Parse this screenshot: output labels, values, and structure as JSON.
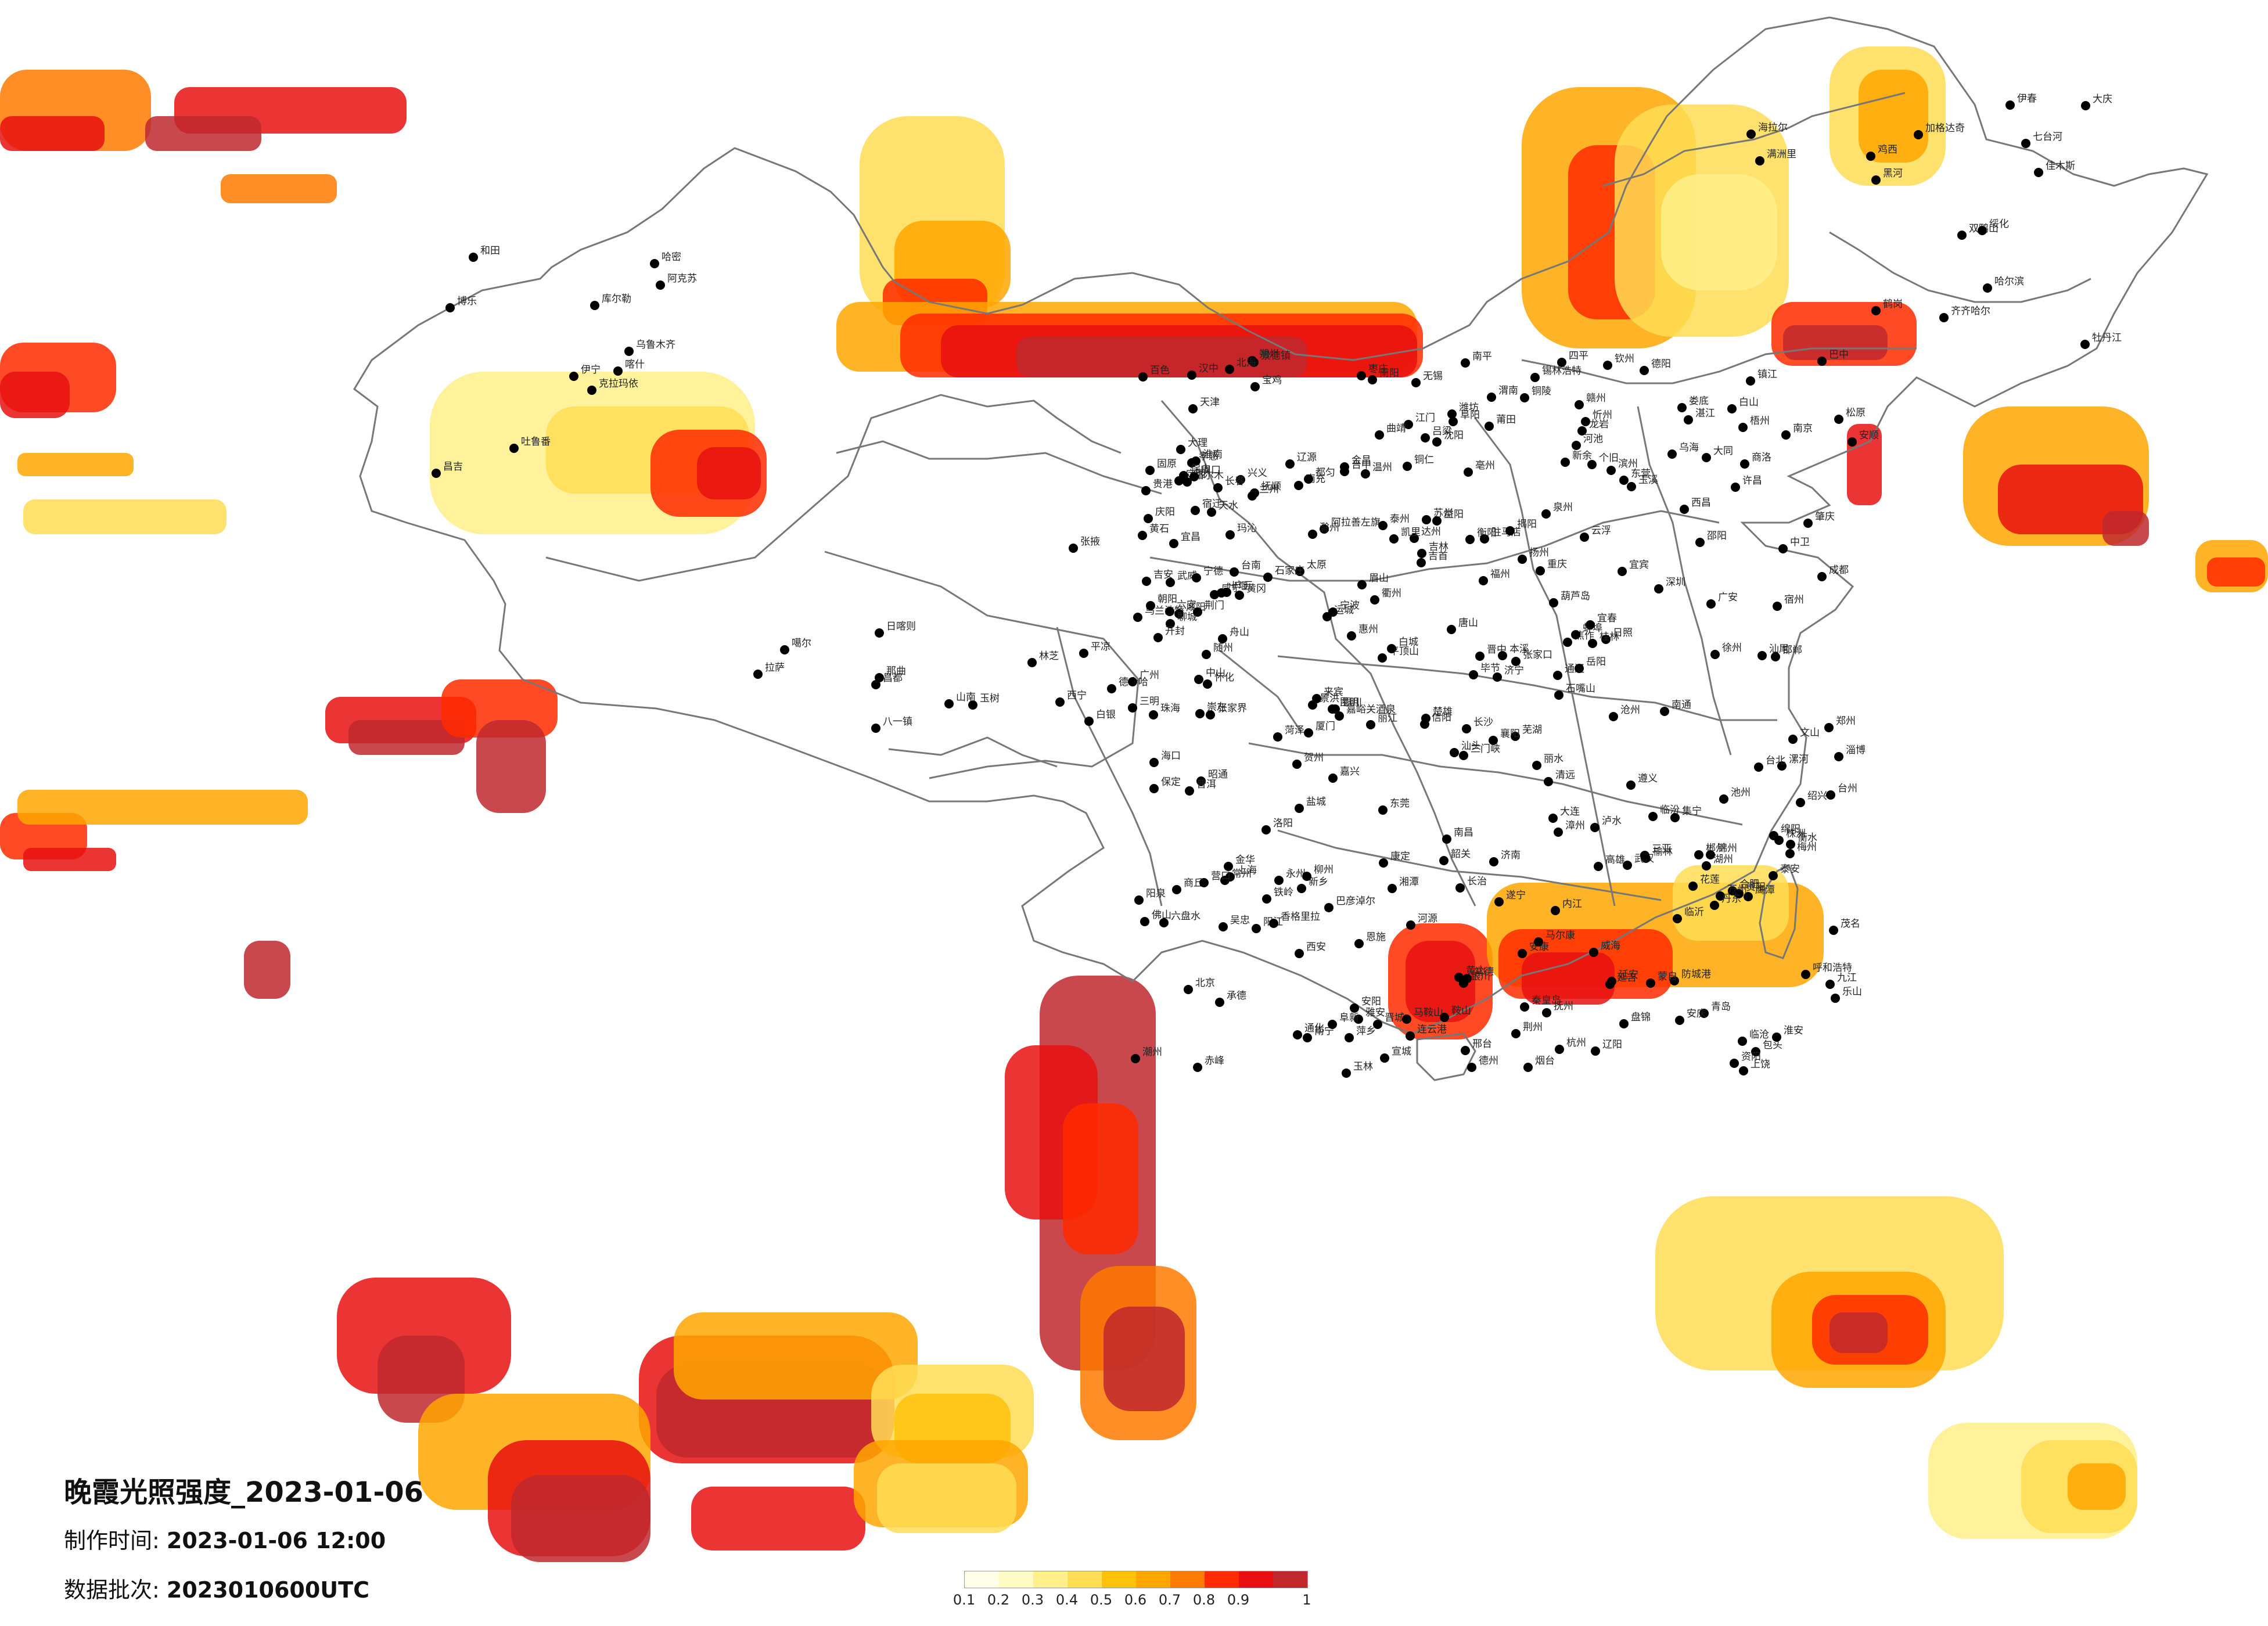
{
  "title": "晚霞光照强度_2023-01-06",
  "made_time": {
    "label": "制作时间:",
    "value": "2023-01-06 12:00"
  },
  "data_batch": {
    "label": "数据批次:",
    "value": "2023010600UTC"
  },
  "legend": {
    "ticks": [
      "0.1",
      "0.2",
      "0.3",
      "0.4",
      "0.5",
      "0.6",
      "0.7",
      "0.8",
      "0.9",
      "1"
    ],
    "colors": [
      "#ffffe8",
      "#fffbc4",
      "#fff08a",
      "#ffdd55",
      "#ffc20a",
      "#ffa600",
      "#ff7a00",
      "#ff2a00",
      "#e81010",
      "#c0282e"
    ]
  },
  "cities": [
    "克拉玛依",
    "博乐",
    "伊宁",
    "昌吉",
    "乌鲁木齐",
    "吐鲁番",
    "哈密",
    "库尔勒",
    "阿克苏",
    "喀什",
    "和田",
    "嘉峪关酒泉",
    "张掖",
    "金昌",
    "武威",
    "兰州",
    "白银",
    "定西",
    "天水",
    "平凉",
    "庆阳",
    "西宁",
    "德令哈",
    "格尔木",
    "玛沁",
    "玉树",
    "噶尔",
    "日喀则",
    "拉萨",
    "山南",
    "林芝",
    "昌都",
    "八一镇",
    "那曲",
    "阿拉善左旗",
    "乌海",
    "巴彦淖尔",
    "包头",
    "呼和浩特",
    "集宁",
    "锡林浩特",
    "海拉尔",
    "满洲里",
    "乌兰浩特",
    "通辽",
    "赤峰",
    "银川",
    "石嘴山",
    "吴忠",
    "中卫",
    "固原",
    "榆林",
    "延安",
    "西安",
    "宝鸡",
    "汉中",
    "安康",
    "商洛",
    "渭南",
    "铜川",
    "咸阳",
    "太原",
    "大同",
    "朔州",
    "忻州",
    "吕梁",
    "晋中",
    "阳泉",
    "长治",
    "晋城",
    "临汾",
    "运城",
    "北京",
    "天津",
    "石家庄",
    "保定",
    "唐山",
    "秦皇岛",
    "张家口",
    "承德",
    "沧州",
    "衡水",
    "邢台",
    "邯郸",
    "济南",
    "青岛",
    "烟台",
    "威海",
    "潍坊",
    "淄博",
    "日照",
    "临沂",
    "济宁",
    "泰安",
    "聊城",
    "德州",
    "滨州",
    "东营",
    "菏泽",
    "枣庄",
    "郑州",
    "开封",
    "洛阳",
    "新乡",
    "安阳",
    "焦作",
    "许昌",
    "平顶山",
    "漯河",
    "周口",
    "驻马店",
    "信阳",
    "南阳",
    "商丘",
    "三门峡",
    "南京",
    "苏州",
    "无锡",
    "常州",
    "镇江",
    "扬州",
    "泰州",
    "南通",
    "盐城",
    "淮安",
    "连云港",
    "徐州",
    "宿迁",
    "上海",
    "杭州",
    "宁波",
    "温州",
    "绍兴",
    "湖州",
    "嘉兴",
    "金华",
    "台州",
    "衢州",
    "丽水",
    "舟山",
    "合肥",
    "芜湖",
    "蚌埠",
    "淮南",
    "马鞍山",
    "安庆",
    "黄山",
    "阜阳",
    "宿州",
    "滁州",
    "六安",
    "宣城",
    "池州",
    "铜陵",
    "亳州",
    "福州",
    "厦门",
    "泉州",
    "漳州",
    "莆田",
    "三明",
    "南平",
    "龙岩",
    "宁德",
    "南昌",
    "九江",
    "景德镇",
    "上饶",
    "鹰潭",
    "抚州",
    "吉安",
    "赣州",
    "宜春",
    "萍乡",
    "新余",
    "武汉",
    "黄石",
    "十堰",
    "宜昌",
    "襄阳",
    "荆州",
    "荆门",
    "孝感",
    "黄冈",
    "咸宁",
    "随州",
    "恩施",
    "长沙",
    "株洲",
    "湘潭",
    "衡阳",
    "邵阳",
    "岳阳",
    "常德",
    "张家界",
    "益阳",
    "郴州",
    "永州",
    "怀化",
    "娄底",
    "吉首",
    "广州",
    "深圳",
    "珠海",
    "汕头",
    "佛山",
    "韶关",
    "湛江",
    "茂名",
    "肇庆",
    "惠州",
    "梅州",
    "汕尾",
    "河源",
    "阳江",
    "清远",
    "东莞",
    "中山",
    "江门",
    "揭阳",
    "潮州",
    "云浮",
    "南宁",
    "柳州",
    "桂林",
    "梧州",
    "北海",
    "防城港",
    "钦州",
    "贵港",
    "玉林",
    "百色",
    "贺州",
    "河池",
    "来宾",
    "崇左",
    "海口",
    "三亚",
    "成都",
    "绵阳",
    "德阳",
    "广元",
    "遂宁",
    "内江",
    "乐山",
    "南充",
    "宜宾",
    "广安",
    "达州",
    "雅安",
    "巴中",
    "眉山",
    "资阳",
    "西昌",
    "康定",
    "马尔康",
    "重庆",
    "万州",
    "贵阳",
    "遵义",
    "六盘水",
    "安顺",
    "毕节",
    "铜仁",
    "凯里",
    "都匀",
    "兴义",
    "昆明",
    "曲靖",
    "玉溪",
    "保山",
    "昭通",
    "丽江",
    "普洱",
    "临沧",
    "楚雄",
    "个旧",
    "文山",
    "景洪",
    "大理",
    "泸水",
    "香格里拉",
    "蒙自",
    "哈尔滨",
    "齐齐哈尔",
    "大庆",
    "牡丹江",
    "佳木斯",
    "鸡西",
    "鹤岗",
    "双鸭山",
    "七台河",
    "伊春",
    "黑河",
    "绥化",
    "加格达奇",
    "长春",
    "吉林",
    "四平",
    "通化",
    "白城",
    "延吉",
    "辽源",
    "松原",
    "白山",
    "沈阳",
    "大连",
    "鞍山",
    "抚顺",
    "本溪",
    "丹东",
    "锦州",
    "营口",
    "阜新",
    "辽阳",
    "盘锦",
    "铁岭",
    "朝阳",
    "葫芦岛",
    "台北",
    "台中",
    "台南",
    "高雄",
    "花莲"
  ]
}
